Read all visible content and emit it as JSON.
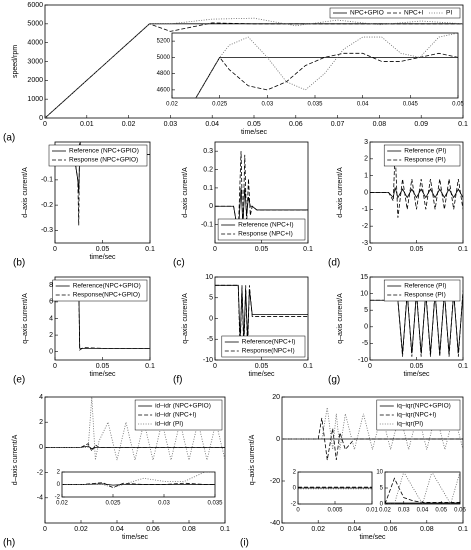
{
  "chart_data": [
    {
      "type": "line",
      "label": "(a)",
      "xlabel": "time/sec",
      "ylabel": "speed/rpm",
      "legend": "upper right",
      "legend_layout": "horizontal",
      "xlim": [
        0,
        0.1
      ],
      "xticks": [
        0,
        0.01,
        0.02,
        0.03,
        0.04,
        0.05,
        0.06,
        0.07,
        0.08,
        0.09,
        0.1
      ],
      "ylim": [
        0,
        6000
      ],
      "yticks": [
        0,
        1000,
        2000,
        3000,
        4000,
        5000,
        6000
      ],
      "x": [
        0,
        0.005,
        0.01,
        0.015,
        0.02,
        0.025,
        0.03,
        0.04,
        0.05,
        0.06,
        0.07,
        0.08,
        0.09,
        0.1
      ],
      "series": [
        {
          "name": "NPC+GPIO",
          "color": "#000000",
          "dash": "solid",
          "values": [
            0,
            1000,
            2000,
            3000,
            4000,
            5000,
            5000,
            5000,
            5000,
            5000,
            5000,
            5000,
            5000,
            5000
          ]
        },
        {
          "name": "NPC+I",
          "color": "#000000",
          "dash": "dashed",
          "values": [
            0,
            1000,
            2000,
            3000,
            4000,
            5000,
            4600,
            5050,
            5000,
            5000,
            5000,
            5000,
            5000,
            5000
          ]
        },
        {
          "name": "PI",
          "color": "#666666",
          "dash": "dotted",
          "values": [
            0,
            1000,
            2000,
            3000,
            4000,
            5000,
            5000,
            5250,
            5300,
            4900,
            5200,
            4950,
            5150,
            5000
          ]
        }
      ]
    },
    {
      "type": "line",
      "xlim": [
        0.02,
        0.05
      ],
      "xticks": [
        0.02,
        0.025,
        0.03,
        0.035,
        0.04,
        0.045,
        0.05
      ],
      "ylim": [
        4500,
        5300
      ],
      "yticks": [
        4600,
        4800,
        5000,
        5200
      ],
      "x": [
        0.02,
        0.022,
        0.024,
        0.025,
        0.026,
        0.028,
        0.03,
        0.032,
        0.034,
        0.036,
        0.038,
        0.04,
        0.042,
        0.044,
        0.046,
        0.048,
        0.05
      ],
      "series": [
        {
          "color": "#000000",
          "dash": "solid",
          "values": [
            4000,
            4400,
            4800,
            5000,
            5000,
            5000,
            5000,
            5000,
            5000,
            5000,
            5000,
            5000,
            5000,
            5000,
            5000,
            5000,
            5000
          ]
        },
        {
          "color": "#000000",
          "dash": "dashed",
          "values": [
            4000,
            4400,
            4800,
            5000,
            4850,
            4650,
            4600,
            4700,
            4900,
            5000,
            5050,
            5050,
            4950,
            4950,
            5000,
            5050,
            5000
          ]
        },
        {
          "color": "#666666",
          "dash": "dotted",
          "values": [
            4000,
            4400,
            4800,
            5000,
            5150,
            5250,
            5000,
            4700,
            4600,
            4800,
            5100,
            5250,
            5250,
            5050,
            5000,
            5250,
            5300
          ]
        }
      ]
    },
    {
      "type": "line",
      "label": "(b)",
      "xlabel": "time/sec",
      "ylabel": "d–axis current/A",
      "legend": "upper right",
      "xlim": [
        0,
        0.1
      ],
      "xticks": [
        0,
        0.05,
        0.1
      ],
      "ylim": [
        -0.35,
        0.05
      ],
      "yticks": [
        -0.3,
        -0.2,
        -0.1,
        0
      ],
      "x": [
        0,
        0.01,
        0.02,
        0.024,
        0.025,
        0.026,
        0.027,
        0.03,
        0.05,
        0.1
      ],
      "series": [
        {
          "name": "Reference (NPC+GPIO)",
          "color": "#000000",
          "dash": "solid",
          "values": [
            0,
            0,
            0,
            -0.1,
            -0.15,
            0,
            0,
            0,
            0,
            0
          ]
        },
        {
          "name": "Response (NPC+GPIO)",
          "color": "#000000",
          "dash": "dashed",
          "values": [
            0,
            0,
            0,
            -0.1,
            -0.28,
            0.1,
            0,
            0,
            0,
            0
          ]
        }
      ]
    },
    {
      "type": "line",
      "label": "(c)",
      "ylabel": "d–axis current/A",
      "legend": "lower right",
      "xlim": [
        0,
        0.1
      ],
      "xticks": [
        0,
        0.05,
        0.1
      ],
      "ylim": [
        -0.2,
        0.35
      ],
      "yticks": [
        -0.1,
        0,
        0.1,
        0.2,
        0.3
      ],
      "x": [
        0,
        0.02,
        0.025,
        0.028,
        0.03,
        0.032,
        0.034,
        0.036,
        0.038,
        0.04,
        0.045,
        0.1
      ],
      "series": [
        {
          "name": "Reference (NPC+I)",
          "color": "#000000",
          "dash": "solid",
          "values": [
            0,
            0,
            -0.15,
            0.1,
            -0.1,
            0.1,
            -0.05,
            0.05,
            0,
            0,
            -0.02,
            -0.02
          ]
        },
        {
          "name": "Response (NPC+I)",
          "color": "#000000",
          "dash": "dashed",
          "values": [
            0,
            0,
            -0.15,
            0.3,
            -0.15,
            0.28,
            -0.1,
            0.15,
            -0.05,
            0,
            -0.02,
            -0.02
          ]
        }
      ]
    },
    {
      "type": "line",
      "label": "(d)",
      "ylabel": "d–axis current/A",
      "legend": "upper right",
      "xlim": [
        0,
        0.1
      ],
      "xticks": [
        0,
        0.05,
        0.1
      ],
      "ylim": [
        -3,
        3
      ],
      "yticks": [
        -3,
        -2,
        -1,
        0,
        1,
        2,
        3
      ],
      "x": [
        0,
        0.02,
        0.025,
        0.027,
        0.03,
        0.035,
        0.04,
        0.045,
        0.05,
        0.055,
        0.06,
        0.065,
        0.07,
        0.075,
        0.08,
        0.085,
        0.09,
        0.095,
        0.1
      ],
      "series": [
        {
          "name": "Reference (PI)",
          "color": "#000000",
          "dash": "solid",
          "values": [
            0,
            0,
            -0.3,
            0.3,
            -0.3,
            0.2,
            -0.3,
            0.2,
            -0.3,
            0.2,
            -0.3,
            0.2,
            -0.3,
            0.2,
            -0.3,
            0.2,
            -0.3,
            0.2,
            -0.3
          ]
        },
        {
          "name": "Response (PI)",
          "color": "#000000",
          "dash": "dashed",
          "values": [
            0,
            0,
            -0.5,
            2.5,
            -1.5,
            0.8,
            -1,
            0.8,
            -1,
            0.8,
            -1,
            0.8,
            -1,
            0.8,
            -1,
            0.8,
            -1,
            0.8,
            -1
          ]
        }
      ]
    },
    {
      "type": "line",
      "label": "(e)",
      "xlabel": "time/sec",
      "ylabel": "q–axis current/A",
      "legend": "upper right",
      "xlim": [
        0,
        0.1
      ],
      "xticks": [
        0,
        0.05,
        0.1
      ],
      "ylim": [
        -1,
        9
      ],
      "yticks": [
        0,
        2,
        4,
        6,
        8
      ],
      "x": [
        0,
        0.025,
        0.026,
        0.03,
        0.05,
        0.1
      ],
      "series": [
        {
          "name": "Reference(NPC+GPIO)",
          "color": "#000000",
          "dash": "solid",
          "values": [
            8.2,
            8.2,
            0.4,
            0.4,
            0.4,
            0.4
          ]
        },
        {
          "name": "Response(NPC+GPIO)",
          "color": "#000000",
          "dash": "dashed",
          "values": [
            8.2,
            8.2,
            0.2,
            0.5,
            0.4,
            0.4
          ]
        }
      ]
    },
    {
      "type": "line",
      "label": "(f)",
      "xlabel": "time/sec",
      "ylabel": "q–axis current/A",
      "legend": "lower right",
      "xlim": [
        0,
        0.1
      ],
      "xticks": [
        0,
        0.05,
        0.1
      ],
      "ylim": [
        -10,
        10
      ],
      "yticks": [
        -10,
        -5,
        0,
        5,
        10
      ],
      "x": [
        0,
        0.025,
        0.027,
        0.029,
        0.031,
        0.033,
        0.035,
        0.037,
        0.04,
        0.1
      ],
      "series": [
        {
          "name": "Reference(NPC+I)",
          "color": "#000000",
          "dash": "solid",
          "values": [
            8,
            8,
            -5,
            7,
            -5,
            7,
            -5,
            7,
            1,
            1
          ]
        },
        {
          "name": "Response(NPC+I)",
          "color": "#000000",
          "dash": "dashed",
          "values": [
            8,
            8,
            -8,
            8,
            -8,
            8,
            -8,
            8,
            0.5,
            0.5
          ]
        }
      ]
    },
    {
      "type": "line",
      "label": "(g)",
      "xlabel": "time/sec",
      "ylabel": "q–axis current/A",
      "legend": "upper right",
      "xlim": [
        0,
        0.1
      ],
      "xticks": [
        0,
        0.05,
        0.1
      ],
      "ylim": [
        -10,
        15
      ],
      "yticks": [
        -10,
        -5,
        0,
        5,
        10,
        15
      ],
      "x": [
        0,
        0.025,
        0.03,
        0.035,
        0.04,
        0.045,
        0.05,
        0.055,
        0.06,
        0.065,
        0.07,
        0.075,
        0.08,
        0.085,
        0.09,
        0.095,
        0.1
      ],
      "series": [
        {
          "name": "Reference (PI)",
          "color": "#000000",
          "dash": "solid",
          "values": [
            8,
            8,
            8,
            -8,
            10,
            -8,
            10,
            -8,
            10,
            -8,
            10,
            -8,
            10,
            -8,
            10,
            -8,
            10
          ]
        },
        {
          "name": "Response (PI)",
          "color": "#000000",
          "dash": "dashed",
          "values": [
            8,
            8,
            8,
            -9,
            11,
            -9,
            11,
            -9,
            11,
            -9,
            11,
            -9,
            11,
            -9,
            11,
            -9,
            11
          ]
        }
      ]
    },
    {
      "type": "line",
      "label": "(h)",
      "xlabel": "time/sec",
      "ylabel": "d–axis current/A",
      "legend": "upper right",
      "xlim": [
        0,
        0.1
      ],
      "xticks": [
        0,
        0.02,
        0.04,
        0.06,
        0.08,
        0.1
      ],
      "ylim": [
        -6,
        4
      ],
      "yticks": [
        -4,
        -2,
        0,
        2,
        4
      ],
      "x": [
        0,
        0.02,
        0.024,
        0.026,
        0.028,
        0.03,
        0.035,
        0.04,
        0.045,
        0.05,
        0.055,
        0.06,
        0.065,
        0.07,
        0.075,
        0.08,
        0.085,
        0.09,
        0.095,
        0.1
      ],
      "series": [
        {
          "name": "id–idr (NPC+GPIO)",
          "color": "#000000",
          "dash": "solid",
          "values": [
            0,
            0,
            0.1,
            -0.1,
            0,
            0,
            0,
            0,
            0,
            0,
            0,
            0,
            0,
            0,
            0,
            0,
            0,
            0,
            0,
            0
          ]
        },
        {
          "name": "id–idr (NPC+I)",
          "color": "#000000",
          "dash": "dashed",
          "values": [
            0,
            0,
            0.3,
            -0.3,
            0.2,
            0,
            0,
            0,
            0,
            0,
            0,
            0,
            0,
            0,
            0,
            0,
            0,
            0,
            0,
            0
          ]
        },
        {
          "name": "id–idr (PI)",
          "color": "#666666",
          "dash": "dotted",
          "values": [
            0,
            0,
            0,
            4,
            -1,
            0.5,
            2,
            -1,
            2,
            -1,
            2,
            -1,
            2,
            -1,
            2,
            -1,
            2,
            -1,
            2,
            -1
          ]
        }
      ]
    },
    {
      "type": "line",
      "xlim": [
        0.02,
        0.035
      ],
      "xticks": [
        0.02,
        0.025,
        0.03,
        0.035
      ],
      "ylim": [
        -2,
        2
      ],
      "yticks": [
        -2,
        0,
        2
      ],
      "x": [
        0.02,
        0.022,
        0.024,
        0.025,
        0.026,
        0.028,
        0.03,
        0.032,
        0.034,
        0.035
      ],
      "series": [
        {
          "color": "#000000",
          "dash": "solid",
          "values": [
            0,
            0,
            0.1,
            -0.1,
            0,
            0,
            0,
            0,
            0,
            0
          ]
        },
        {
          "color": "#000000",
          "dash": "dashed",
          "values": [
            0,
            0,
            0.3,
            -0.5,
            0.2,
            0,
            0,
            0.2,
            0,
            0
          ]
        },
        {
          "color": "#666666",
          "dash": "dotted",
          "values": [
            0,
            0,
            0,
            -0.5,
            0,
            1,
            0.5,
            0.5,
            2,
            2
          ]
        }
      ]
    },
    {
      "type": "line",
      "label": "(i)",
      "xlabel": "time/sec",
      "ylabel": "q–axis current/A",
      "legend": "upper right",
      "xlim": [
        0,
        0.1
      ],
      "xticks": [
        0,
        0.02,
        0.04,
        0.06,
        0.08,
        0.1
      ],
      "ylim": [
        -40,
        20
      ],
      "yticks": [
        -40,
        -20,
        0,
        20
      ],
      "x": [
        0,
        0.02,
        0.022,
        0.025,
        0.028,
        0.03,
        0.032,
        0.035,
        0.04,
        0.045,
        0.05,
        0.055,
        0.06,
        0.065,
        0.07,
        0.075,
        0.08,
        0.085,
        0.09,
        0.095,
        0.1
      ],
      "series": [
        {
          "name": "iq–iqr(NPC+GPIO)",
          "color": "#000000",
          "dash": "solid",
          "values": [
            0,
            0,
            0,
            0,
            0,
            0,
            0,
            0,
            0,
            0,
            0,
            0,
            0,
            0,
            0,
            0,
            0,
            0,
            0,
            0,
            0
          ]
        },
        {
          "name": "iq–iqr(NPC+I)",
          "color": "#000000",
          "dash": "dashed",
          "values": [
            0,
            0,
            10,
            -10,
            5,
            -10,
            3,
            -5,
            0,
            0,
            0,
            0,
            0,
            0,
            0,
            0,
            0,
            0,
            0,
            0,
            0
          ]
        },
        {
          "name": "iq–iqr(PI)",
          "color": "#666666",
          "dash": "dotted",
          "values": [
            0,
            0,
            0,
            15,
            -5,
            12,
            -5,
            12,
            -5,
            12,
            -5,
            12,
            -5,
            12,
            -5,
            12,
            -5,
            12,
            -5,
            12,
            -5
          ]
        }
      ]
    },
    {
      "type": "line",
      "xlim": [
        0,
        0.01
      ],
      "xticks": [
        0,
        0.005,
        0.01
      ],
      "ylim": [
        -2,
        2
      ],
      "yticks": [
        -2,
        0,
        2
      ],
      "x": [
        0,
        0.005,
        0.01
      ],
      "series": [
        {
          "color": "#000000",
          "dash": "solid",
          "values": [
            0,
            0,
            0
          ]
        },
        {
          "color": "#000000",
          "dash": "dashed",
          "values": [
            0.1,
            0.1,
            0.1
          ]
        },
        {
          "color": "#666666",
          "dash": "dotted",
          "values": [
            -0.1,
            -0.1,
            -0.1
          ]
        }
      ]
    },
    {
      "type": "line",
      "xlim": [
        0.02,
        0.06
      ],
      "xticks": [
        0.02,
        0.03,
        0.04,
        0.05,
        0.06
      ],
      "ylim": [
        0,
        10
      ],
      "yticks": [
        0,
        5,
        10
      ],
      "x": [
        0.02,
        0.025,
        0.03,
        0.035,
        0.04,
        0.045,
        0.05,
        0.055,
        0.06
      ],
      "series": [
        {
          "color": "#000000",
          "dash": "solid",
          "values": [
            0.3,
            0.3,
            0.3,
            0.3,
            0.3,
            0.3,
            0.3,
            0.3,
            0.3
          ]
        },
        {
          "color": "#000000",
          "dash": "dashed",
          "values": [
            0,
            8,
            2,
            1,
            0.5,
            0.5,
            0.5,
            0.5,
            0.5
          ]
        },
        {
          "color": "#666666",
          "dash": "dotted",
          "values": [
            0,
            0,
            10,
            5,
            0,
            10,
            5,
            0,
            10
          ]
        }
      ]
    }
  ]
}
